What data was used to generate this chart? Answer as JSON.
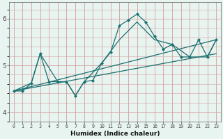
{
  "xlabel": "Humidex (Indice chaleur)",
  "bg_color": "#e8f4f0",
  "grid_color": "#d4a0a0",
  "line_color": "#1a7070",
  "xlim": [
    -0.5,
    23.5
  ],
  "ylim": [
    3.8,
    6.35
  ],
  "xticks": [
    0,
    1,
    2,
    3,
    4,
    5,
    6,
    7,
    8,
    9,
    10,
    11,
    12,
    13,
    14,
    15,
    16,
    17,
    18,
    19,
    20,
    21,
    22,
    23
  ],
  "yticks": [
    4,
    5,
    6
  ],
  "line1_x": [
    0,
    1,
    2,
    3,
    4,
    5,
    6,
    7,
    8,
    9,
    10,
    11,
    12,
    13,
    14,
    15,
    16,
    17,
    18,
    19,
    20,
    21,
    22,
    23
  ],
  "line1_y": [
    4.45,
    4.45,
    4.62,
    5.25,
    4.65,
    4.65,
    4.65,
    4.35,
    4.65,
    4.68,
    5.05,
    5.28,
    5.85,
    5.97,
    6.1,
    5.93,
    5.62,
    5.35,
    5.45,
    5.18,
    5.18,
    5.55,
    5.18,
    5.55
  ],
  "line2_x": [
    0,
    2,
    3,
    5,
    6,
    7,
    8,
    10,
    12,
    14,
    16,
    18,
    20,
    22,
    23
  ],
  "line2_y": [
    4.45,
    4.62,
    5.25,
    4.65,
    4.65,
    4.35,
    4.65,
    5.05,
    5.55,
    5.93,
    5.55,
    5.45,
    5.18,
    5.18,
    5.55
  ],
  "line3_x": [
    0,
    23
  ],
  "line3_y": [
    4.45,
    5.55
  ],
  "line4_x": [
    0,
    23
  ],
  "line4_y": [
    4.45,
    5.25
  ]
}
